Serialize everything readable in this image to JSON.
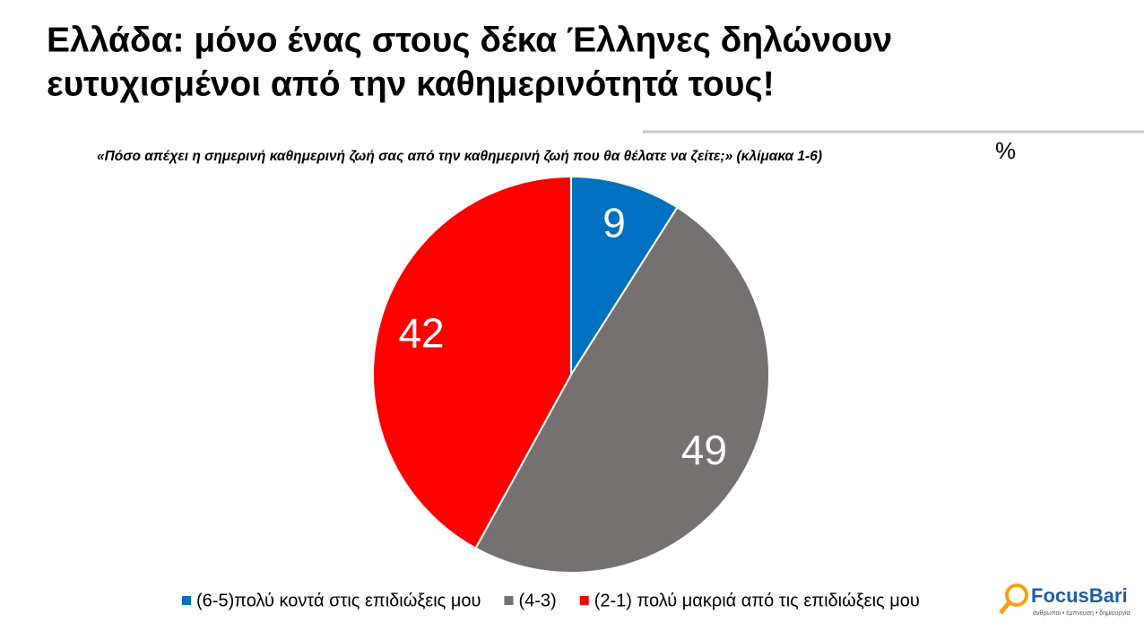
{
  "chart_data": {
    "type": "pie",
    "title": [
      "Ελλάδα: μόνο ένας στους δέκα Έλληνες δηλώνουν",
      "ευτυχισμένοι από την καθημερινότητά τους!"
    ],
    "subtitle": "«Πόσο απέχει η σημερινή καθημερινή ζωή σας από την καθημερινή ζωή που θα θέλατε να ζείτε;» (κλίμακα 1-6)",
    "unit": "%",
    "categories": [
      "(6-5)πολύ κοντά στις επιδιώξεις μου",
      "(4-3)",
      "(2-1) πολύ μακριά από τις επιδιώξεις μου"
    ],
    "values": [
      9,
      49,
      42
    ],
    "colors": [
      "#0070c0",
      "#767171",
      "#ff0000"
    ],
    "start_angle": 90,
    "direction": "clockwise"
  },
  "logo": {
    "name": "FocusBari",
    "tagline": "άνθρωποι • έμπνευση • δημιουργία"
  }
}
